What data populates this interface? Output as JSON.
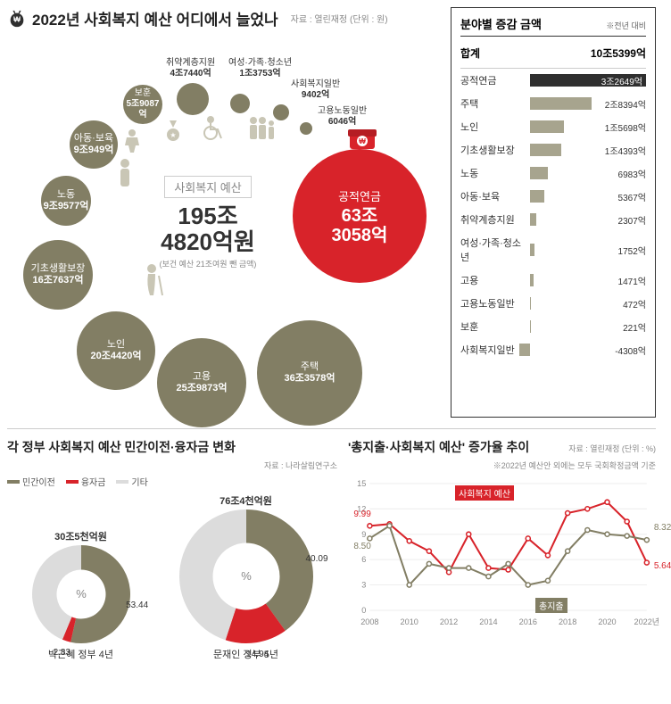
{
  "colors": {
    "olive": "#827e64",
    "olive_light": "#a7a48e",
    "red": "#d8232a",
    "dark": "#2f2f2f",
    "grey": "#bfbfbf",
    "grey_light": "#dcdcdc",
    "text": "#333333",
    "muted": "#888888"
  },
  "header": {
    "title": "2022년 사회복지 예산 어디에서 늘었나",
    "source": "자료 : 열린재정  (단위 : 원)"
  },
  "center": {
    "title": "사회복지 예산",
    "value_line1": "195조",
    "value_line2": "4820억원",
    "note": "(보건 예산 21조여원 뺀 금액)"
  },
  "highlight": {
    "label": "공적연금",
    "value_line1": "63조",
    "value_line2": "3058억"
  },
  "bubbles": [
    {
      "id": "housing",
      "label": "주택",
      "value": "36조3578억",
      "color": "#827e64",
      "size": 118,
      "x": 280,
      "y": 322,
      "label_inside": true
    },
    {
      "id": "employment",
      "label": "고용",
      "value": "25조9873억",
      "color": "#827e64",
      "size": 100,
      "x": 168,
      "y": 342,
      "label_inside": true
    },
    {
      "id": "elderly",
      "label": "노인",
      "value": "20조4420억",
      "color": "#827e64",
      "size": 88,
      "x": 78,
      "y": 312,
      "label_inside": true
    },
    {
      "id": "basic",
      "label": "기초생활보장",
      "value": "16조7637억",
      "color": "#827e64",
      "size": 78,
      "x": 18,
      "y": 232,
      "label_inside": true
    },
    {
      "id": "labor",
      "label": "노동",
      "value": "9조9577억",
      "color": "#827e64",
      "size": 56,
      "x": 38,
      "y": 160,
      "label_inside": true
    },
    {
      "id": "child",
      "label": "아동·보육",
      "value": "9조949억",
      "color": "#827e64",
      "size": 54,
      "x": 70,
      "y": 98,
      "label_inside": true
    },
    {
      "id": "veterans",
      "label": "보훈",
      "value": "5조9087억",
      "color": "#827e64",
      "size": 44,
      "x": 130,
      "y": 58,
      "label_inside": true
    },
    {
      "id": "vulnerable",
      "label": "취약계층지원",
      "value": "4조7440억",
      "color": "#827e64",
      "size": 36,
      "x": 190,
      "y": 56,
      "label_inside": false,
      "ox": 178,
      "oy": 28
    },
    {
      "id": "women",
      "label": "여성·가족·청소년",
      "value": "1조3753억",
      "color": "#827e64",
      "size": 22,
      "x": 250,
      "y": 68,
      "label_inside": false,
      "ox": 248,
      "oy": 28
    },
    {
      "id": "welfare_general",
      "label": "사회복지일반",
      "value": "9402억",
      "color": "#827e64",
      "size": 18,
      "x": 298,
      "y": 80,
      "label_inside": false,
      "ox": 318,
      "oy": 52
    },
    {
      "id": "labor_general",
      "label": "고용노동일반",
      "value": "6046억",
      "color": "#827e64",
      "size": 14,
      "x": 328,
      "y": 100,
      "label_inside": false,
      "ox": 348,
      "oy": 82
    }
  ],
  "bar_chart": {
    "title": "분야별 증감 금액",
    "subtitle": "※전년 대비",
    "total_label": "합계",
    "total_value": "10조5399억",
    "max": 32649,
    "rows": [
      {
        "label": "공적연금",
        "value": "3조2649억",
        "num": 32649,
        "color": "#2f2f2f",
        "value_color": "#ffffff"
      },
      {
        "label": "주택",
        "value": "2조8394억",
        "num": 28394,
        "color": "#a7a48e"
      },
      {
        "label": "노인",
        "value": "1조5698억",
        "num": 15698,
        "color": "#a7a48e"
      },
      {
        "label": "기초생활보장",
        "value": "1조4393억",
        "num": 14393,
        "color": "#a7a48e"
      },
      {
        "label": "노동",
        "value": "6983억",
        "num": 6983,
        "color": "#a7a48e"
      },
      {
        "label": "아동·보육",
        "value": "5367억",
        "num": 5367,
        "color": "#a7a48e"
      },
      {
        "label": "취약계층지원",
        "value": "2307억",
        "num": 2307,
        "color": "#a7a48e"
      },
      {
        "label": "여성·가족·청소년",
        "value": "1752억",
        "num": 1752,
        "color": "#a7a48e"
      },
      {
        "label": "고용",
        "value": "1471억",
        "num": 1471,
        "color": "#a7a48e"
      },
      {
        "label": "고용노동일반",
        "value": "472억",
        "num": 472,
        "color": "#a7a48e"
      },
      {
        "label": "보훈",
        "value": "221억",
        "num": 221,
        "color": "#a7a48e"
      },
      {
        "label": "사회복지일반",
        "value": "-4308억",
        "num": -4308,
        "color": "#a7a48e"
      }
    ]
  },
  "donut_panel": {
    "title": "각 정부 사회복지 예산 민간이전·융자금 변화",
    "source": "자료 : 나라살림연구소",
    "legend": [
      {
        "label": "민간이전",
        "color": "#827e64"
      },
      {
        "label": "융자금",
        "color": "#d8232a"
      },
      {
        "label": "기타",
        "color": "#dcdcdc"
      }
    ],
    "donuts": [
      {
        "total": "30조5천억원",
        "caption": "박근혜 정부 4년",
        "size": 110,
        "slices": [
          {
            "label": "53.44",
            "pct": 53.44,
            "color": "#827e64"
          },
          {
            "label": "2.83",
            "pct": 2.83,
            "color": "#d8232a"
          },
          {
            "label": "",
            "pct": 43.73,
            "color": "#dcdcdc"
          }
        ]
      },
      {
        "total": "76조4천억원",
        "caption": "문재인 정부 5년",
        "size": 150,
        "slices": [
          {
            "label": "40.09",
            "pct": 40.09,
            "color": "#827e64"
          },
          {
            "label": "14.94",
            "pct": 14.94,
            "color": "#d8232a"
          },
          {
            "label": "",
            "pct": 44.97,
            "color": "#dcdcdc"
          }
        ]
      }
    ]
  },
  "line_panel": {
    "title": "'총지출·사회복지 예산' 증가율 추이",
    "source": "자료 : 열린재정 (단위 : %)",
    "note": "※2022년 예산안 외에는 모두 국회확정금액 기준",
    "y_ticks": [
      0,
      3,
      6,
      9,
      12,
      15
    ],
    "x_labels": [
      "2008",
      "2010",
      "2012",
      "2014",
      "2016",
      "2018",
      "2020",
      "2022년"
    ],
    "series": [
      {
        "name": "사회복지 예산",
        "color": "#d8232a",
        "marker": "circle",
        "points": [
          9.99,
          10.2,
          8.2,
          7.0,
          4.5,
          9.0,
          5.0,
          4.8,
          8.5,
          6.5,
          11.5,
          12.0,
          12.8,
          10.5,
          5.64
        ],
        "callouts": {
          "0": "9.99",
          "14": "5.64"
        }
      },
      {
        "name": "총지출",
        "color": "#827e64",
        "marker": "circle",
        "points": [
          8.5,
          10.0,
          3.0,
          5.5,
          5.0,
          5.0,
          4.0,
          5.5,
          3.0,
          3.5,
          7.0,
          9.5,
          9.0,
          8.8,
          8.32
        ],
        "callouts": {
          "0": "8.50",
          "14": "8.32"
        }
      }
    ]
  }
}
